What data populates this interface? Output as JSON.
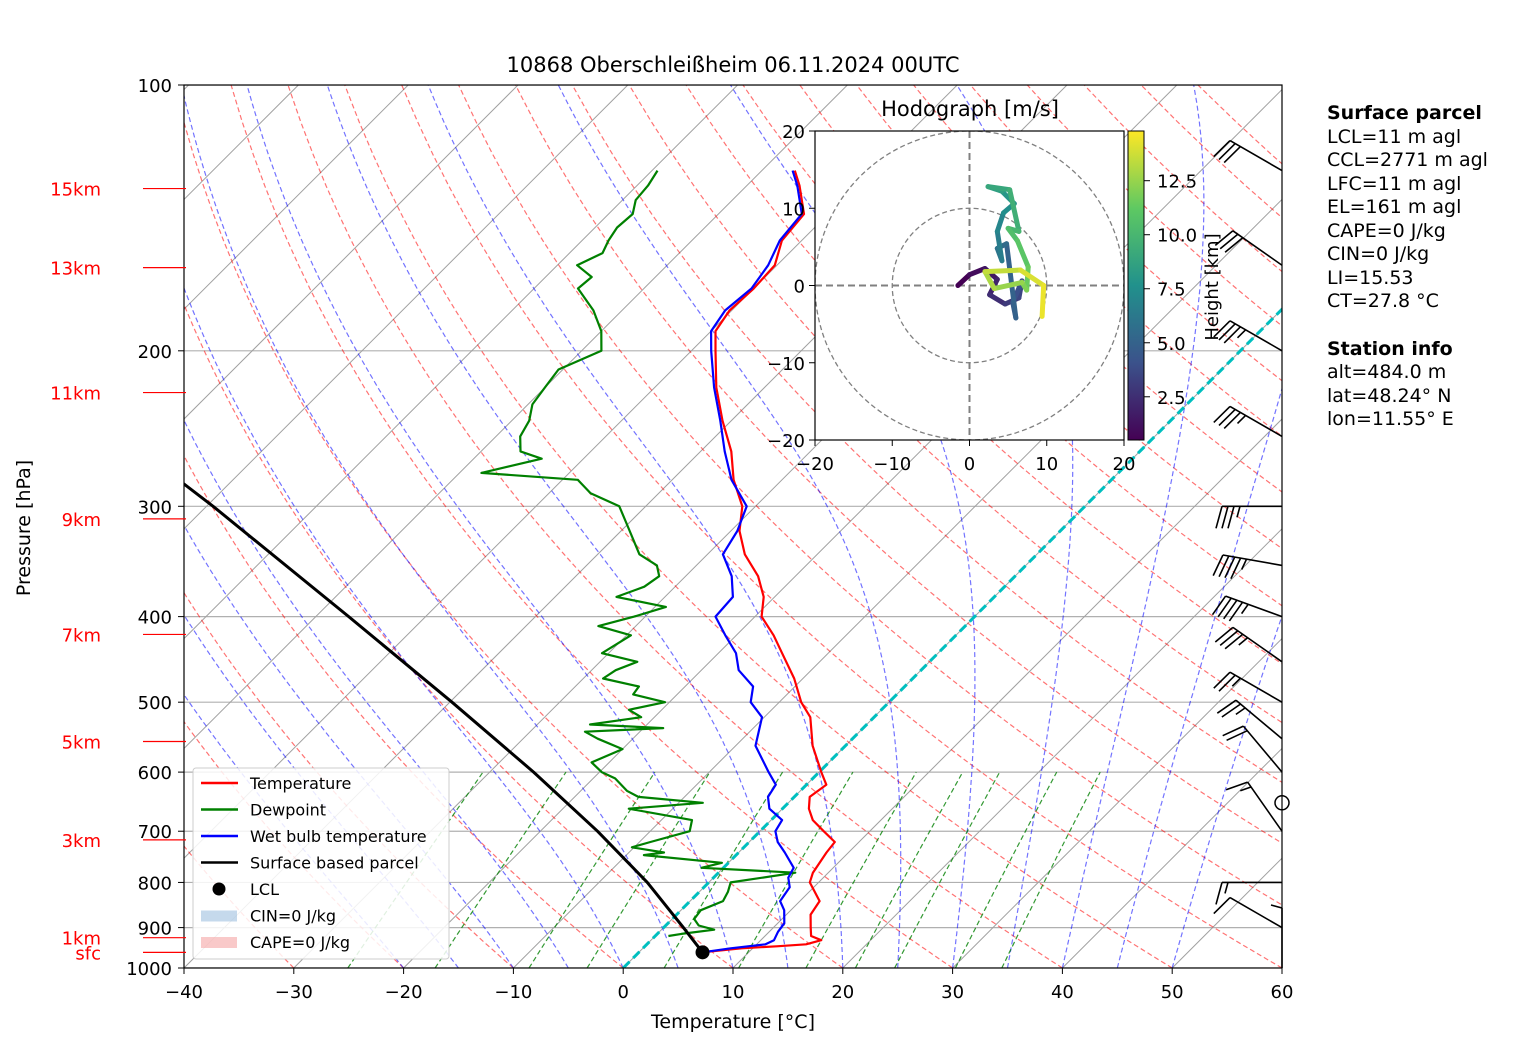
{
  "title": "10868 Oberschleißheim 06.11.2024 00UTC",
  "xlabel": "Temperature [°C]",
  "ylabel": "Pressure [hPa]",
  "chart_data": {
    "type": "line",
    "title": "10868 Oberschleißheim 06.11.2024 00UTC",
    "xlabel": "Temperature [°C]",
    "ylabel": "Pressure [hPa]",
    "xlim": [
      -40,
      60
    ],
    "ylim": [
      1000,
      100
    ],
    "yscale": "log",
    "skew": true,
    "grid": true,
    "x_ticks": [
      "−40",
      "−30",
      "−20",
      "−10",
      "0",
      "10",
      "20",
      "30",
      "40",
      "50",
      "60"
    ],
    "y_ticks": [
      {
        "p": 100,
        "label": "100"
      },
      {
        "p": 200,
        "label": "200"
      },
      {
        "p": 300,
        "label": "300"
      },
      {
        "p": 400,
        "label": "400"
      },
      {
        "p": 500,
        "label": "500"
      },
      {
        "p": 600,
        "label": "600"
      },
      {
        "p": 700,
        "label": "700"
      },
      {
        "p": 800,
        "label": "800"
      },
      {
        "p": 900,
        "label": "900"
      },
      {
        "p": 1000,
        "label": "1000"
      }
    ],
    "height_labels": [
      {
        "label": "15km",
        "p": 131
      },
      {
        "label": "13km",
        "p": 161
      },
      {
        "label": "11km",
        "p": 223
      },
      {
        "label": "9km",
        "p": 310
      },
      {
        "label": "7km",
        "p": 419
      },
      {
        "label": "5km",
        "p": 554
      },
      {
        "label": "3km",
        "p": 716
      },
      {
        "label": "1km",
        "p": 924
      },
      {
        "label": "sfc",
        "p": 960
      }
    ],
    "series": [
      {
        "name": "Temperature",
        "color": "#ff0000",
        "points": [
          [
            960,
            5.8
          ],
          [
            950,
            9
          ],
          [
            945,
            12
          ],
          [
            940,
            14.5
          ],
          [
            930,
            15.5
          ],
          [
            920,
            14.2
          ],
          [
            900,
            13.4
          ],
          [
            870,
            12.2
          ],
          [
            840,
            11.8
          ],
          [
            800,
            9.2
          ],
          [
            780,
            8.6
          ],
          [
            740,
            8.0
          ],
          [
            720,
            7.8
          ],
          [
            700,
            5.8
          ],
          [
            680,
            3.8
          ],
          [
            660,
            2.4
          ],
          [
            640,
            1.4
          ],
          [
            620,
            1.8
          ],
          [
            600,
            0.2
          ],
          [
            560,
            -3.0
          ],
          [
            520,
            -5.8
          ],
          [
            500,
            -8.0
          ],
          [
            470,
            -10.8
          ],
          [
            440,
            -14.2
          ],
          [
            420,
            -16.6
          ],
          [
            400,
            -19.4
          ],
          [
            380,
            -21.0
          ],
          [
            360,
            -23.4
          ],
          [
            340,
            -26.6
          ],
          [
            320,
            -29.2
          ],
          [
            300,
            -31.2
          ],
          [
            280,
            -34.4
          ],
          [
            260,
            -37.2
          ],
          [
            240,
            -40.8
          ],
          [
            220,
            -44.4
          ],
          [
            200,
            -47.8
          ],
          [
            190,
            -49.6
          ],
          [
            180,
            -50.2
          ],
          [
            170,
            -50.0
          ],
          [
            160,
            -50.2
          ],
          [
            150,
            -51.8
          ],
          [
            140,
            -52.2
          ],
          [
            130,
            -55.2
          ],
          [
            125,
            -57.0
          ]
        ]
      },
      {
        "name": "Dewpoint",
        "color": "#008000",
        "points": [
          [
            920,
            1.2
          ],
          [
            915,
            2.2
          ],
          [
            905,
            4.8
          ],
          [
            895,
            3.0
          ],
          [
            880,
            2.0
          ],
          [
            860,
            1.8
          ],
          [
            840,
            3.0
          ],
          [
            820,
            2.6
          ],
          [
            800,
            2.0
          ],
          [
            780,
            7.0
          ],
          [
            770,
            -2.0
          ],
          [
            760,
            -0.6
          ],
          [
            745,
            -8.4
          ],
          [
            740,
            -6.8
          ],
          [
            730,
            -10.2
          ],
          [
            720,
            -9.0
          ],
          [
            700,
            -6.4
          ],
          [
            680,
            -7.2
          ],
          [
            660,
            -14.0
          ],
          [
            650,
            -7.8
          ],
          [
            640,
            -14.2
          ],
          [
            630,
            -15.8
          ],
          [
            610,
            -18.0
          ],
          [
            600,
            -19.8
          ],
          [
            585,
            -21.6
          ],
          [
            565,
            -20.0
          ],
          [
            550,
            -23.2
          ],
          [
            540,
            -25.0
          ],
          [
            535,
            -18.2
          ],
          [
            530,
            -25.2
          ],
          [
            520,
            -21.2
          ],
          [
            510,
            -23.0
          ],
          [
            500,
            -20.4
          ],
          [
            490,
            -24.0
          ],
          [
            480,
            -24.2
          ],
          [
            470,
            -28.2
          ],
          [
            460,
            -27.8
          ],
          [
            450,
            -26.6
          ],
          [
            440,
            -30.6
          ],
          [
            420,
            -29.6
          ],
          [
            410,
            -33.4
          ],
          [
            400,
            -31.0
          ],
          [
            390,
            -29.0
          ],
          [
            380,
            -34.4
          ],
          [
            370,
            -32.8
          ],
          [
            360,
            -32.4
          ],
          [
            350,
            -33.6
          ],
          [
            340,
            -36.2
          ],
          [
            320,
            -39.2
          ],
          [
            300,
            -42.4
          ],
          [
            290,
            -46.2
          ],
          [
            280,
            -48.6
          ],
          [
            275,
            -58.0
          ],
          [
            265,
            -53.8
          ],
          [
            260,
            -56.4
          ],
          [
            250,
            -57.8
          ],
          [
            240,
            -58.4
          ],
          [
            230,
            -59.6
          ],
          [
            220,
            -60.0
          ],
          [
            210,
            -60.4
          ],
          [
            200,
            -58.2
          ],
          [
            190,
            -60.0
          ],
          [
            180,
            -62.6
          ],
          [
            170,
            -66.0
          ],
          [
            165,
            -65.8
          ],
          [
            160,
            -68.2
          ],
          [
            155,
            -67.0
          ],
          [
            150,
            -67.6
          ],
          [
            145,
            -68.0
          ],
          [
            140,
            -67.8
          ],
          [
            135,
            -68.8
          ],
          [
            130,
            -69.0
          ],
          [
            125,
            -69.5
          ]
        ]
      },
      {
        "name": "Wet bulb temperature",
        "color": "#0000ff",
        "points": [
          [
            960,
            5.8
          ],
          [
            950,
            8.0
          ],
          [
            940,
            10.8
          ],
          [
            930,
            11.2
          ],
          [
            910,
            10.8
          ],
          [
            890,
            10.6
          ],
          [
            860,
            9.4
          ],
          [
            840,
            8.2
          ],
          [
            810,
            7.8
          ],
          [
            790,
            6.8
          ],
          [
            770,
            6.4
          ],
          [
            740,
            4.2
          ],
          [
            720,
            2.6
          ],
          [
            700,
            1.4
          ],
          [
            680,
            1.0
          ],
          [
            660,
            -1.2
          ],
          [
            640,
            -2.4
          ],
          [
            620,
            -2.8
          ],
          [
            600,
            -4.6
          ],
          [
            560,
            -8.2
          ],
          [
            520,
            -10.2
          ],
          [
            500,
            -12.6
          ],
          [
            480,
            -13.8
          ],
          [
            460,
            -16.6
          ],
          [
            440,
            -18.4
          ],
          [
            420,
            -21.0
          ],
          [
            400,
            -23.6
          ],
          [
            380,
            -23.8
          ],
          [
            360,
            -25.8
          ],
          [
            340,
            -28.6
          ],
          [
            320,
            -29.4
          ],
          [
            300,
            -30.8
          ],
          [
            280,
            -34.6
          ],
          [
            260,
            -37.8
          ],
          [
            240,
            -41.0
          ],
          [
            220,
            -44.6
          ],
          [
            200,
            -48.2
          ],
          [
            190,
            -50.0
          ],
          [
            180,
            -50.6
          ],
          [
            170,
            -50.2
          ],
          [
            160,
            -50.8
          ],
          [
            150,
            -52.0
          ],
          [
            140,
            -52.4
          ],
          [
            130,
            -55.4
          ],
          [
            125,
            -57.2
          ]
        ]
      },
      {
        "name": "Surface based parcel",
        "color": "#000000",
        "points": [
          [
            960,
            5.8
          ],
          [
            900,
            1.8
          ],
          [
            800,
            -5.6
          ],
          [
            700,
            -14.8
          ],
          [
            600,
            -26.0
          ],
          [
            500,
            -39.8
          ],
          [
            400,
            -57.0
          ],
          [
            300,
            -79.4
          ],
          [
            200,
            -112.0
          ],
          [
            150,
            -134.0
          ],
          [
            100,
            -165.0
          ]
        ]
      }
    ],
    "lcl": {
      "p": 960,
      "t": 5.8
    },
    "cin": "CIN=0 J/kg",
    "cape": "CAPE=0 J/kg",
    "legend": {
      "placement": "lower-left",
      "entries": [
        "Temperature",
        "Dewpoint",
        "Wet bulb temperature",
        "Surface based parcel",
        "LCL",
        "CIN=0 J/kg",
        "CAPE=0 J/kg"
      ]
    },
    "hodograph": {
      "title": "Hodograph [m/s]",
      "xlim": [
        -20,
        20
      ],
      "ylim": [
        -20,
        20
      ],
      "ticks": [
        "−20",
        "−10",
        "0",
        "10",
        "20"
      ],
      "colorbar_label": "Height [km]",
      "colorbar_ticks": [
        "2.5",
        "5.0",
        "7.5",
        "10.0",
        "12.5"
      ],
      "colorbar_range": [
        0.5,
        14.8
      ],
      "points": [
        [
          -1.5,
          0,
          0.5
        ],
        [
          0,
          1.4,
          1.0
        ],
        [
          2,
          2.2,
          1.5
        ],
        [
          3.6,
          0.8,
          2.0
        ],
        [
          2.6,
          -1.2,
          2.5
        ],
        [
          4.6,
          -2.4,
          3.0
        ],
        [
          6.4,
          -1.6,
          3.5
        ],
        [
          6.8,
          0.6,
          4.0
        ],
        [
          5.6,
          -2.2,
          4.5
        ],
        [
          6.0,
          -4.2,
          5.0
        ],
        [
          4.8,
          5.4,
          5.5
        ],
        [
          3.6,
          4.8,
          6.0
        ],
        [
          4.2,
          3.2,
          6.5
        ],
        [
          3.6,
          7.0,
          7.0
        ],
        [
          4.4,
          9.4,
          7.5
        ],
        [
          5.8,
          10.6,
          8.0
        ],
        [
          4.2,
          12.2,
          8.5
        ],
        [
          2.4,
          12.8,
          9.0
        ],
        [
          5.2,
          12.4,
          9.5
        ],
        [
          6.4,
          7.0,
          10.0
        ],
        [
          5.0,
          7.4,
          10.5
        ],
        [
          6.2,
          5.8,
          11.0
        ],
        [
          7.6,
          2.4,
          11.5
        ],
        [
          7.4,
          -0.6,
          12.0
        ],
        [
          6.8,
          0.4,
          12.5
        ],
        [
          3.2,
          -0.4,
          13.0
        ],
        [
          2.0,
          1.8,
          13.5
        ],
        [
          6.6,
          2.0,
          14.0
        ],
        [
          9.6,
          0.0,
          14.4
        ],
        [
          9.4,
          -4.0,
          14.8
        ]
      ]
    },
    "wind_barbs": [
      {
        "p": 125,
        "speed_kt": 30,
        "dir_deg": 300
      },
      {
        "p": 160,
        "speed_kt": 30,
        "dir_deg": 305
      },
      {
        "p": 200,
        "speed_kt": 35,
        "dir_deg": 300
      },
      {
        "p": 250,
        "speed_kt": 35,
        "dir_deg": 300
      },
      {
        "p": 300,
        "speed_kt": 35,
        "dir_deg": 270
      },
      {
        "p": 350,
        "speed_kt": 45,
        "dir_deg": 280
      },
      {
        "p": 400,
        "speed_kt": 45,
        "dir_deg": 290
      },
      {
        "p": 450,
        "speed_kt": 35,
        "dir_deg": 305
      },
      {
        "p": 500,
        "speed_kt": 25,
        "dir_deg": 300
      },
      {
        "p": 550,
        "speed_kt": 25,
        "dir_deg": 310
      },
      {
        "p": 600,
        "speed_kt": 20,
        "dir_deg": 320
      },
      {
        "p": 650,
        "speed_kt": 0,
        "dir_deg": 0
      },
      {
        "p": 700,
        "speed_kt": 15,
        "dir_deg": 325
      },
      {
        "p": 800,
        "speed_kt": 15,
        "dir_deg": 270
      },
      {
        "p": 900,
        "speed_kt": 10,
        "dir_deg": 300
      },
      {
        "p": 1000,
        "speed_kt": 5,
        "dir_deg": 360
      }
    ]
  },
  "surface_parcel": {
    "header": "Surface parcel",
    "lines": [
      "LCL=11 m agl",
      "CCL=2771 m agl",
      "LFC=11 m agl",
      "EL=161 m agl",
      "CAPE=0 J/kg",
      "CIN=0 J/kg",
      "LI=15.53",
      "CT=27.8 °C"
    ]
  },
  "station_info": {
    "header": "Station info",
    "lines": [
      "alt=484.0 m",
      "lat=48.24° N",
      "lon=11.55° E"
    ]
  },
  "colors": {
    "temperature": "#ff0000",
    "dewpoint": "#008000",
    "wetbulb": "#0000ff",
    "parcel": "#000000",
    "dry_adiabat": "#ff0000",
    "moist_adiabat": "#0000ff",
    "mixing_ratio": "#008000",
    "isotherm_zero": "#00bfbf",
    "height_label": "#ff0000"
  }
}
